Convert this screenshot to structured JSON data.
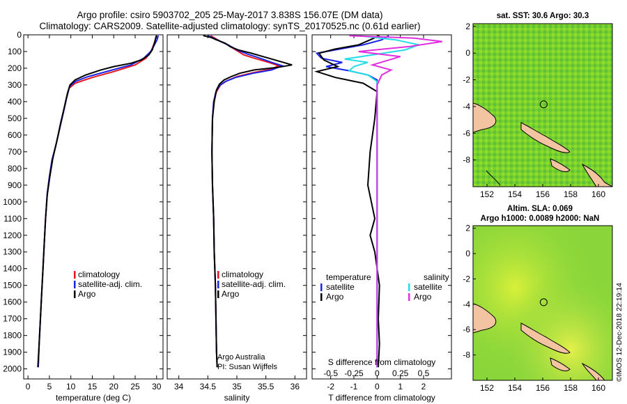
{
  "title_line1": "Argo profile: csiro 5903702_205 25-May-2017 3.838S 156.07E (DM data)",
  "title_line2": "Climatology: CARS2009. Satellite-adjusted climatology: synTS_20170525.nc (0.61d earlier)",
  "credit_line1": "Argo Australia",
  "credit_line2": "PI: Susan Wijffels",
  "watermark": "©IMOS 12-Dec-2018 22:19:14",
  "colors": {
    "climatology": "#e8141e",
    "satellite": "#1a24e6",
    "argo": "#000000",
    "sal_satellite": "#22dde8",
    "sal_argo": "#e02ee0"
  },
  "chart_data": [
    {
      "id": "temperature",
      "type": "line",
      "xlabel": "temperature (deg C)",
      "xlim": [
        -1,
        31.5
      ],
      "xticks": [
        0,
        5,
        10,
        15,
        20,
        25,
        30
      ],
      "xtick_labels": [
        "0",
        "5",
        "10",
        "15",
        "20",
        "25",
        "30"
      ],
      "ylim": [
        2060,
        0
      ],
      "yticks": [
        0,
        100,
        200,
        300,
        400,
        500,
        600,
        700,
        800,
        900,
        1000,
        1100,
        1200,
        1300,
        1400,
        1500,
        1600,
        1700,
        1800,
        1900,
        2000
      ],
      "ytick_labels": [
        "0",
        "100",
        "200",
        "300",
        "400",
        "500",
        "600",
        "700",
        "800",
        "900",
        "1000",
        "1100",
        "1200",
        "1300",
        "1400",
        "1500",
        "1600",
        "1700",
        "1800",
        "1900",
        "2000"
      ],
      "legend": [
        "climatology",
        "satellite-adj. clim.",
        "Argo"
      ],
      "series": [
        {
          "name": "climatology",
          "color_key": "climatology",
          "points": [
            [
              29.9,
              5
            ],
            [
              29.7,
              30
            ],
            [
              29.3,
              60
            ],
            [
              28.7,
              100
            ],
            [
              27.5,
              140
            ],
            [
              25,
              180
            ],
            [
              20,
              220
            ],
            [
              15,
              255
            ],
            [
              11,
              290
            ],
            [
              9.6,
              320
            ],
            [
              9,
              380
            ],
            [
              8.4,
              450
            ],
            [
              7.5,
              550
            ],
            [
              6.6,
              650
            ],
            [
              5.6,
              750
            ],
            [
              5,
              850
            ],
            [
              4.5,
              950
            ],
            [
              4.1,
              1100
            ],
            [
              3.8,
              1250
            ],
            [
              3.5,
              1400
            ],
            [
              3.2,
              1550
            ],
            [
              2.9,
              1700
            ],
            [
              2.6,
              1850
            ],
            [
              2.4,
              1990
            ]
          ]
        },
        {
          "name": "satellite-adj. clim.",
          "color_key": "satellite",
          "points": [
            [
              30.4,
              5
            ],
            [
              30.1,
              30
            ],
            [
              29.5,
              60
            ],
            [
              28.6,
              100
            ],
            [
              27,
              140
            ],
            [
              24,
              180
            ],
            [
              19,
              215
            ],
            [
              14,
              250
            ],
            [
              11,
              280
            ],
            [
              9.7,
              310
            ],
            [
              9,
              380
            ],
            [
              8.4,
              450
            ],
            [
              7.5,
              550
            ],
            [
              6.6,
              650
            ],
            [
              5.6,
              750
            ],
            [
              5,
              850
            ],
            [
              4.5,
              950
            ],
            [
              4.1,
              1100
            ],
            [
              3.8,
              1250
            ],
            [
              3.5,
              1400
            ],
            [
              3.2,
              1550
            ],
            [
              2.9,
              1700
            ],
            [
              2.6,
              1850
            ],
            [
              2.4,
              1990
            ]
          ]
        },
        {
          "name": "Argo",
          "color_key": "argo",
          "points": [
            [
              30,
              5
            ],
            [
              29.8,
              20
            ],
            [
              29.5,
              50
            ],
            [
              29,
              90
            ],
            [
              28.2,
              120
            ],
            [
              26.5,
              150
            ],
            [
              24,
              170
            ],
            [
              20,
              190
            ],
            [
              17,
              210
            ],
            [
              13.5,
              240
            ],
            [
              11,
              270
            ],
            [
              9.8,
              300
            ],
            [
              9.2,
              350
            ],
            [
              8.5,
              430
            ],
            [
              7.6,
              530
            ],
            [
              6.7,
              640
            ],
            [
              5.8,
              740
            ],
            [
              5.1,
              850
            ],
            [
              4.5,
              960
            ],
            [
              4.1,
              1100
            ],
            [
              3.8,
              1250
            ],
            [
              3.5,
              1400
            ],
            [
              3.2,
              1550
            ],
            [
              2.9,
              1700
            ],
            [
              2.6,
              1850
            ],
            [
              2.3,
              1990
            ]
          ]
        }
      ]
    },
    {
      "id": "salinity",
      "type": "line",
      "xlabel": "salinity",
      "xlim": [
        33.8,
        36.2
      ],
      "xticks": [
        34,
        34.5,
        35,
        35.5,
        36
      ],
      "xtick_labels": [
        "34",
        "34.5",
        "35",
        "35.5",
        "36"
      ],
      "ylim": [
        2060,
        0
      ],
      "legend": [
        "climatology",
        "satellite-adj. clim.",
        "Argo"
      ],
      "series": [
        {
          "name": "climatology",
          "color_key": "climatology",
          "points": [
            [
              34.55,
              5
            ],
            [
              34.62,
              20
            ],
            [
              34.72,
              40
            ],
            [
              34.84,
              60
            ],
            [
              34.98,
              90
            ],
            [
              35.12,
              120
            ],
            [
              35.3,
              140
            ],
            [
              35.55,
              165
            ],
            [
              35.72,
              185
            ],
            [
              35.6,
              205
            ],
            [
              35.3,
              225
            ],
            [
              35,
              250
            ],
            [
              34.83,
              275
            ],
            [
              34.72,
              300
            ],
            [
              34.65,
              340
            ],
            [
              34.6,
              400
            ],
            [
              34.58,
              500
            ],
            [
              34.57,
              700
            ],
            [
              34.58,
              900
            ],
            [
              34.6,
              1100
            ],
            [
              34.61,
              1300
            ],
            [
              34.63,
              1500
            ],
            [
              34.64,
              1700
            ],
            [
              34.65,
              1900
            ],
            [
              34.66,
              1990
            ]
          ]
        },
        {
          "name": "satellite-adj. clim.",
          "color_key": "satellite",
          "points": [
            [
              34.5,
              5
            ],
            [
              34.6,
              20
            ],
            [
              34.72,
              40
            ],
            [
              34.85,
              60
            ],
            [
              35,
              90
            ],
            [
              35.18,
              115
            ],
            [
              35.4,
              140
            ],
            [
              35.6,
              165
            ],
            [
              35.78,
              185
            ],
            [
              35.6,
              210
            ],
            [
              35.28,
              230
            ],
            [
              34.98,
              255
            ],
            [
              34.8,
              280
            ],
            [
              34.7,
              305
            ],
            [
              34.64,
              340
            ],
            [
              34.6,
              400
            ],
            [
              34.58,
              500
            ],
            [
              34.57,
              700
            ],
            [
              34.58,
              900
            ],
            [
              34.6,
              1100
            ],
            [
              34.61,
              1300
            ],
            [
              34.63,
              1500
            ],
            [
              34.64,
              1700
            ],
            [
              34.65,
              1900
            ],
            [
              34.66,
              1990
            ]
          ]
        },
        {
          "name": "Argo",
          "color_key": "argo",
          "points": [
            [
              34.42,
              5
            ],
            [
              34.55,
              15
            ],
            [
              34.65,
              30
            ],
            [
              34.8,
              50
            ],
            [
              34.88,
              70
            ],
            [
              35.02,
              90
            ],
            [
              35.25,
              110
            ],
            [
              35.55,
              140
            ],
            [
              35.8,
              165
            ],
            [
              35.95,
              180
            ],
            [
              35.7,
              195
            ],
            [
              35.3,
              210
            ],
            [
              35.05,
              230
            ],
            [
              34.9,
              250
            ],
            [
              34.78,
              270
            ],
            [
              34.7,
              295
            ],
            [
              34.65,
              330
            ],
            [
              34.61,
              400
            ],
            [
              34.58,
              500
            ],
            [
              34.57,
              700
            ],
            [
              34.58,
              900
            ],
            [
              34.6,
              1100
            ],
            [
              34.61,
              1300
            ],
            [
              34.63,
              1500
            ],
            [
              34.64,
              1700
            ],
            [
              34.65,
              1900
            ],
            [
              34.66,
              1990
            ]
          ]
        }
      ]
    },
    {
      "id": "difference",
      "type": "line",
      "xlabel": "T difference from climatology",
      "xlim": [
        -2.8,
        3.2
      ],
      "xticks": [
        -2,
        -1,
        0,
        1,
        2
      ],
      "xtick_labels": [
        "-2",
        "-1",
        "0",
        "1",
        "2"
      ],
      "top_axis_label": "S difference from climatology",
      "top_xticks": [
        -0.5,
        -0.25,
        0,
        0.25,
        0.5
      ],
      "top_xtick_labels": [
        "-0.5",
        "-0.25",
        "0",
        "0.25",
        "0.5"
      ],
      "ylim": [
        2060,
        0
      ],
      "legend_left_title": "temperature",
      "legend_right_title": "salinity",
      "legend_left": [
        "satellite",
        "Argo"
      ],
      "legend_right": [
        "satellite",
        "Argo"
      ],
      "series": [
        {
          "name": "temperature satellite",
          "color_key": "satellite",
          "points": [
            [
              0.5,
              5
            ],
            [
              0.2,
              30
            ],
            [
              -0.6,
              60
            ],
            [
              -1.8,
              90
            ],
            [
              -2.6,
              110
            ],
            [
              -2.4,
              140
            ],
            [
              -1.5,
              165
            ],
            [
              -2.2,
              190
            ],
            [
              -1.2,
              215
            ],
            [
              -0.4,
              240
            ],
            [
              0,
              270
            ],
            [
              0,
              1990
            ]
          ]
        },
        {
          "name": "temperature Argo",
          "color_key": "argo",
          "points": [
            [
              0.1,
              5
            ],
            [
              -0.3,
              30
            ],
            [
              -0.8,
              60
            ],
            [
              -1.8,
              85
            ],
            [
              -2.5,
              110
            ],
            [
              -2.3,
              150
            ],
            [
              -1.7,
              190
            ],
            [
              -2.6,
              220
            ],
            [
              -1.8,
              255
            ],
            [
              -0.6,
              290
            ],
            [
              0,
              340
            ],
            [
              -0.1,
              500
            ],
            [
              -0.3,
              700
            ],
            [
              -0.4,
              900
            ],
            [
              -0.1,
              1100
            ],
            [
              -0.3,
              1200
            ],
            [
              -0.1,
              1300
            ],
            [
              0.1,
              1500
            ],
            [
              0.05,
              1700
            ],
            [
              0.1,
              1850
            ],
            [
              0.05,
              1990
            ]
          ]
        },
        {
          "name": "salinity satellite",
          "color_key": "sal_satellite",
          "points": [
            [
              -0.2,
              5
            ],
            [
              0.2,
              30
            ],
            [
              0.45,
              60
            ],
            [
              0.3,
              90
            ],
            [
              -0.05,
              120
            ],
            [
              -0.35,
              145
            ],
            [
              -0.1,
              165
            ],
            [
              -0.25,
              190
            ],
            [
              -0.3,
              215
            ],
            [
              -0.1,
              240
            ],
            [
              0,
              280
            ],
            [
              0,
              1990
            ]
          ]
        },
        {
          "name": "salinity Argo",
          "color_key": "sal_argo",
          "points": [
            [
              -0.3,
              5
            ],
            [
              0.4,
              20
            ],
            [
              0.7,
              40
            ],
            [
              0.35,
              70
            ],
            [
              -0.2,
              100
            ],
            [
              0.25,
              130
            ],
            [
              0.1,
              155
            ],
            [
              -0.05,
              180
            ],
            [
              0.15,
              210
            ],
            [
              0.05,
              240
            ],
            [
              0,
              300
            ],
            [
              0,
              1990
            ]
          ]
        }
      ]
    },
    {
      "id": "sst_map",
      "type": "heatmap",
      "title": "sat. SST: 30.6 Argo: 30.3",
      "xlim": [
        151,
        161
      ],
      "ylim": [
        -10,
        2.2
      ],
      "xticks": [
        152,
        154,
        156,
        158,
        160
      ],
      "yticks": [
        2,
        0,
        -2,
        -4,
        -6,
        -8
      ],
      "float_position": [
        156.07,
        -3.838
      ]
    },
    {
      "id": "sla_map",
      "type": "heatmap",
      "title": "Altim. SLA: 0.069",
      "title2": "Argo h1000: 0.0089 h2000: NaN",
      "xlim": [
        151,
        161
      ],
      "ylim": [
        -10,
        2.2
      ],
      "xticks": [
        152,
        154,
        156,
        158,
        160
      ],
      "yticks": [
        2,
        0,
        -2,
        -4,
        -6,
        -8
      ],
      "float_position": [
        156.07,
        -3.838
      ]
    }
  ]
}
